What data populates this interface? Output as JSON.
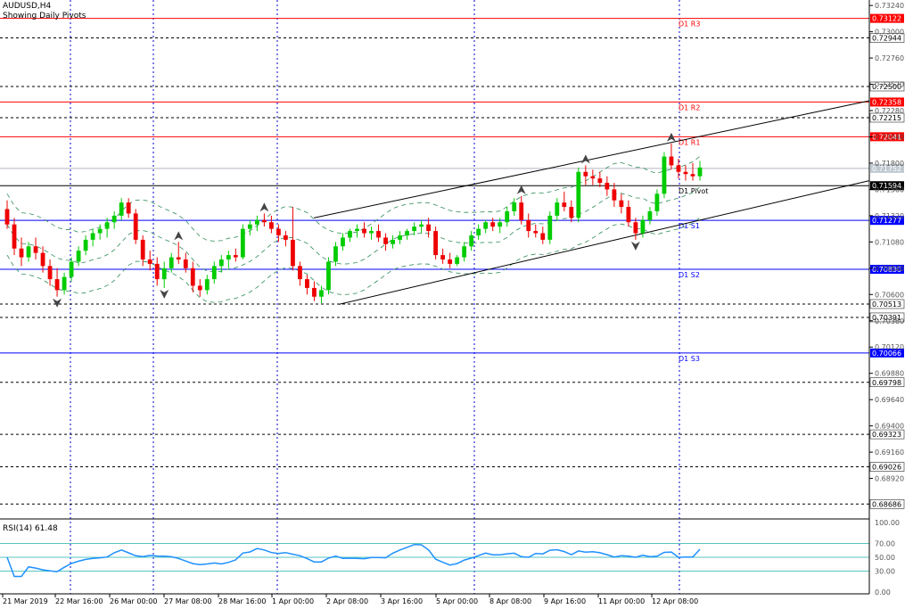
{
  "header": {
    "symbol": "AUDUSD,H4",
    "subtitle": "Showing Daily Pivots"
  },
  "rsi": {
    "label": "RSI(14) 61.48",
    "levels": [
      "100.00",
      "70.00",
      "50.00",
      "30.00",
      "0.00"
    ]
  },
  "colors": {
    "red": "#ff0000",
    "blue": "#0000ff",
    "bull": "#00cc00",
    "bear": "#ee0000",
    "rsi": "#1e90ff",
    "bands": "#2e8b57"
  },
  "price_axis": {
    "min": 0.6855,
    "max": 0.7329,
    "ticks": [
      "0.73240",
      "0.73000",
      "0.72760",
      "0.72520",
      "0.72280",
      "0.72040",
      "0.71800",
      "0.71560",
      "0.71320",
      "0.71080",
      "0.70840",
      "0.70600",
      "0.70360",
      "0.70120",
      "0.69880",
      "0.69640",
      "0.69400",
      "0.69160",
      "0.68920"
    ],
    "dashed_levels": [
      "0.72944",
      "0.72500",
      "0.72215",
      "0.70513",
      "0.70391",
      "0.69798",
      "0.69323",
      "0.69026",
      "0.68686"
    ],
    "current": "0.71752"
  },
  "pivots": [
    {
      "name": "Pivot",
      "label": "D1 Pivot",
      "value": "0.71594",
      "kind": "pivot"
    },
    {
      "name": "R1",
      "label": "D1 R1",
      "value": "0.72041",
      "kind": "res"
    },
    {
      "name": "R2",
      "label": "D1 R2",
      "value": "0.72358",
      "kind": "res"
    },
    {
      "name": "R3",
      "label": "D1 R3",
      "value": "0.73122",
      "kind": "res"
    },
    {
      "name": "S1",
      "label": "D1 S1",
      "value": "0.71277",
      "kind": "sup"
    },
    {
      "name": "S2",
      "label": "D1 S2",
      "value": "0.70830",
      "kind": "sup"
    },
    {
      "name": "S3",
      "label": "D1 S3",
      "value": "0.70066",
      "kind": "sup"
    }
  ],
  "time_axis": [
    "21 Mar 2019",
    "22 Mar 16:00",
    "26 Mar 00:00",
    "27 Mar 08:00",
    "28 Mar 16:00",
    "1 Apr 00:00",
    "2 Apr 08:00",
    "3 Apr 16:00",
    "5 Apr 00:00",
    "8 Apr 08:00",
    "9 Apr 16:00",
    "11 Apr 00:00",
    "12 Apr 08:00"
  ],
  "chart_data": {
    "type": "candlestick",
    "symbol": "AUDUSD",
    "timeframe": "H4",
    "ohlc": [
      [
        0.7138,
        0.7146,
        0.712,
        0.7124
      ],
      [
        0.7124,
        0.713,
        0.7096,
        0.7102
      ],
      [
        0.7102,
        0.7112,
        0.7086,
        0.7094
      ],
      [
        0.7094,
        0.7108,
        0.709,
        0.7104
      ],
      [
        0.7104,
        0.7112,
        0.7092,
        0.7098
      ],
      [
        0.7098,
        0.7104,
        0.708,
        0.7086
      ],
      [
        0.7086,
        0.7092,
        0.7068,
        0.7074
      ],
      [
        0.7074,
        0.7084,
        0.7058,
        0.7064
      ],
      [
        0.7064,
        0.708,
        0.706,
        0.7076
      ],
      [
        0.7076,
        0.7094,
        0.7072,
        0.709
      ],
      [
        0.709,
        0.7104,
        0.7086,
        0.71
      ],
      [
        0.71,
        0.7114,
        0.7096,
        0.711
      ],
      [
        0.711,
        0.712,
        0.7104,
        0.7116
      ],
      [
        0.7116,
        0.7124,
        0.711,
        0.712
      ],
      [
        0.712,
        0.713,
        0.7112,
        0.7126
      ],
      [
        0.7126,
        0.7136,
        0.712,
        0.7132
      ],
      [
        0.7132,
        0.7148,
        0.7128,
        0.7144
      ],
      [
        0.7144,
        0.7148,
        0.713,
        0.7134
      ],
      [
        0.7134,
        0.7138,
        0.7106,
        0.711
      ],
      [
        0.711,
        0.7114,
        0.7086,
        0.7092
      ],
      [
        0.7092,
        0.71,
        0.7082,
        0.7088
      ],
      [
        0.7088,
        0.7094,
        0.7068,
        0.7074
      ],
      [
        0.7074,
        0.709,
        0.7066,
        0.7084
      ],
      [
        0.7084,
        0.7098,
        0.708,
        0.7094
      ],
      [
        0.7094,
        0.7108,
        0.7088,
        0.7092
      ],
      [
        0.7092,
        0.7098,
        0.708,
        0.7084
      ],
      [
        0.7084,
        0.709,
        0.7062,
        0.7068
      ],
      [
        0.7068,
        0.7074,
        0.7058,
        0.7064
      ],
      [
        0.7064,
        0.7078,
        0.706,
        0.7074
      ],
      [
        0.7074,
        0.709,
        0.707,
        0.7086
      ],
      [
        0.7086,
        0.7096,
        0.708,
        0.7092
      ],
      [
        0.7092,
        0.71,
        0.7084,
        0.7096
      ],
      [
        0.7096,
        0.7102,
        0.709,
        0.7094
      ],
      [
        0.7094,
        0.7124,
        0.7092,
        0.712
      ],
      [
        0.712,
        0.7128,
        0.7114,
        0.7124
      ],
      [
        0.7124,
        0.7132,
        0.7118,
        0.7128
      ],
      [
        0.7128,
        0.7134,
        0.7122,
        0.7126
      ],
      [
        0.7126,
        0.7132,
        0.7116,
        0.712
      ],
      [
        0.712,
        0.7124,
        0.7108,
        0.7114
      ],
      [
        0.7114,
        0.7118,
        0.7104,
        0.711
      ],
      [
        0.711,
        0.714,
        0.7082,
        0.7086
      ],
      [
        0.7086,
        0.709,
        0.7068,
        0.7074
      ],
      [
        0.7074,
        0.7078,
        0.706,
        0.7066
      ],
      [
        0.7066,
        0.7072,
        0.7054,
        0.7058
      ],
      [
        0.7058,
        0.7068,
        0.7052,
        0.7064
      ],
      [
        0.7064,
        0.7094,
        0.706,
        0.709
      ],
      [
        0.709,
        0.7108,
        0.7086,
        0.7104
      ],
      [
        0.7104,
        0.7116,
        0.71,
        0.7112
      ],
      [
        0.7112,
        0.712,
        0.7108,
        0.7118
      ],
      [
        0.7118,
        0.7124,
        0.7112,
        0.712
      ],
      [
        0.712,
        0.7126,
        0.7112,
        0.7116
      ],
      [
        0.7116,
        0.7122,
        0.711,
        0.7118
      ],
      [
        0.7118,
        0.7124,
        0.7108,
        0.7112
      ],
      [
        0.7112,
        0.7116,
        0.71,
        0.7106
      ],
      [
        0.7106,
        0.7114,
        0.7102,
        0.711
      ],
      [
        0.711,
        0.7118,
        0.7106,
        0.7114
      ],
      [
        0.7114,
        0.712,
        0.711,
        0.7118
      ],
      [
        0.7118,
        0.7126,
        0.7114,
        0.7122
      ],
      [
        0.7122,
        0.7128,
        0.7116,
        0.7124
      ],
      [
        0.7124,
        0.713,
        0.7112,
        0.7118
      ],
      [
        0.7118,
        0.7122,
        0.7092,
        0.7096
      ],
      [
        0.7096,
        0.7102,
        0.7088,
        0.7092
      ],
      [
        0.7092,
        0.7098,
        0.7084,
        0.7088
      ],
      [
        0.7088,
        0.7096,
        0.7086,
        0.7094
      ],
      [
        0.7094,
        0.7108,
        0.709,
        0.7104
      ],
      [
        0.7104,
        0.7118,
        0.71,
        0.7114
      ],
      [
        0.7114,
        0.7124,
        0.711,
        0.712
      ],
      [
        0.712,
        0.7128,
        0.7116,
        0.7126
      ],
      [
        0.7126,
        0.713,
        0.7118,
        0.7122
      ],
      [
        0.7122,
        0.713,
        0.7116,
        0.7126
      ],
      [
        0.7126,
        0.714,
        0.7122,
        0.7136
      ],
      [
        0.7136,
        0.7148,
        0.7132,
        0.7144
      ],
      [
        0.7144,
        0.715,
        0.7124,
        0.7128
      ],
      [
        0.7128,
        0.7134,
        0.7112,
        0.7118
      ],
      [
        0.7118,
        0.7124,
        0.7112,
        0.7116
      ],
      [
        0.7116,
        0.7122,
        0.7106,
        0.711
      ],
      [
        0.711,
        0.7136,
        0.7106,
        0.7132
      ],
      [
        0.7132,
        0.7148,
        0.7128,
        0.7144
      ],
      [
        0.7144,
        0.7154,
        0.7136,
        0.714
      ],
      [
        0.714,
        0.7146,
        0.7126,
        0.713
      ],
      [
        0.713,
        0.7176,
        0.7126,
        0.7172
      ],
      [
        0.7172,
        0.7178,
        0.716,
        0.7168
      ],
      [
        0.7168,
        0.7174,
        0.716,
        0.7166
      ],
      [
        0.7166,
        0.7172,
        0.7158,
        0.7162
      ],
      [
        0.7162,
        0.7168,
        0.715,
        0.7156
      ],
      [
        0.7156,
        0.7162,
        0.714,
        0.7146
      ],
      [
        0.7146,
        0.7152,
        0.7134,
        0.714
      ],
      [
        0.714,
        0.7146,
        0.7122,
        0.7126
      ],
      [
        0.7126,
        0.713,
        0.711,
        0.7116
      ],
      [
        0.7116,
        0.7132,
        0.7112,
        0.7128
      ],
      [
        0.7128,
        0.714,
        0.7124,
        0.7136
      ],
      [
        0.7136,
        0.7156,
        0.7132,
        0.7152
      ],
      [
        0.7152,
        0.719,
        0.7148,
        0.7186
      ],
      [
        0.7186,
        0.7198,
        0.7174,
        0.7178
      ],
      [
        0.7178,
        0.7184,
        0.7166,
        0.7172
      ],
      [
        0.7172,
        0.7178,
        0.7164,
        0.717
      ],
      [
        0.717,
        0.718,
        0.7164,
        0.7168
      ],
      [
        0.7168,
        0.7182,
        0.7164,
        0.7176
      ]
    ],
    "rsi14_last": 61.48,
    "price_range": [
      0.6855,
      0.7329
    ],
    "rsi_range": [
      0,
      100
    ]
  }
}
